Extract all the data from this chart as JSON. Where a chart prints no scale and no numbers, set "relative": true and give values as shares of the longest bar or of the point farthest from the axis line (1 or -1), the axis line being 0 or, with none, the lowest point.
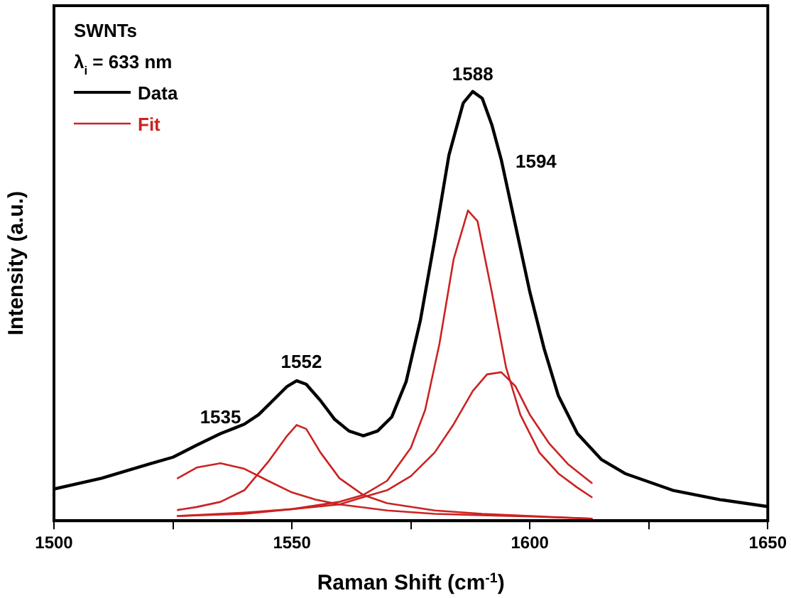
{
  "chart_data": {
    "type": "line",
    "xlabel": "Raman Shift (cm$^{-1}$)",
    "ylabel": "Intensity (a.u.)",
    "relative": true,
    "xlim": [
      1500,
      1650
    ],
    "xticks": [
      1500,
      {
        "value": 1525,
        "label": null
      },
      1550,
      {
        "value": 1575,
        "label": null
      },
      1600,
      {
        "value": 1625,
        "label": null
      },
      1650
    ],
    "grid": false,
    "legend": "top left",
    "marker": "none",
    "line_style": "solid",
    "annotations": [
      "SWNTs",
      "λ$_{i}$ = 633 nm",
      {
        "text": "1535",
        "x": 1535,
        "y": 0.2
      },
      {
        "text": "1552",
        "x": 1552,
        "y": 0.33
      },
      {
        "text": "1588",
        "x": 1588,
        "y": 1.0
      },
      {
        "text": "1594",
        "x": 1594,
        "y": 0.84
      }
    ],
    "series": [
      {
        "name": "Data",
        "color": "#000000",
        "x": [
          1500,
          1510,
          1520,
          1525,
          1530,
          1535,
          1538,
          1540,
          1543,
          1546,
          1549,
          1551,
          1553,
          1556,
          1559,
          1562,
          1565,
          1568,
          1571,
          1574,
          1577,
          1580,
          1583,
          1586,
          1588,
          1590,
          1592,
          1594,
          1597,
          1600,
          1603,
          1606,
          1610,
          1615,
          1620,
          1630,
          1640,
          1650
        ],
        "values": [
          0.074,
          0.099,
          0.132,
          0.148,
          0.176,
          0.203,
          0.216,
          0.225,
          0.247,
          0.28,
          0.313,
          0.326,
          0.318,
          0.28,
          0.236,
          0.209,
          0.198,
          0.209,
          0.242,
          0.324,
          0.467,
          0.654,
          0.852,
          0.973,
          1.0,
          0.984,
          0.923,
          0.841,
          0.687,
          0.533,
          0.401,
          0.291,
          0.203,
          0.143,
          0.11,
          0.071,
          0.049,
          0.033
        ]
      },
      {
        "name": "Fit",
        "color": "#cc2222",
        "x": [
          1526,
          1530,
          1535,
          1540,
          1545,
          1550,
          1555,
          1560,
          1570,
          1580,
          1590,
          1600,
          1613
        ],
        "values": [
          0.099,
          0.124,
          0.134,
          0.121,
          0.093,
          0.066,
          0.049,
          0.038,
          0.024,
          0.016,
          0.013,
          0.01,
          0.005
        ]
      },
      {
        "color": "#cc2222",
        "x": [
          1526,
          1530,
          1535,
          1540,
          1545,
          1549,
          1551,
          1553,
          1556,
          1560,
          1565,
          1570,
          1580,
          1590,
          1600,
          1613
        ],
        "values": [
          0.025,
          0.032,
          0.044,
          0.071,
          0.137,
          0.198,
          0.223,
          0.214,
          0.159,
          0.099,
          0.06,
          0.041,
          0.024,
          0.016,
          0.011,
          0.005
        ]
      },
      {
        "color": "#cc2222",
        "x": [
          1526,
          1540,
          1550,
          1560,
          1565,
          1570,
          1575,
          1578,
          1581,
          1584,
          1587,
          1589,
          1592,
          1595,
          1598,
          1602,
          1606,
          1610,
          1613
        ],
        "values": [
          0.011,
          0.019,
          0.027,
          0.044,
          0.06,
          0.093,
          0.17,
          0.258,
          0.412,
          0.61,
          0.723,
          0.698,
          0.533,
          0.357,
          0.247,
          0.159,
          0.11,
          0.077,
          0.055
        ]
      },
      {
        "color": "#cc2222",
        "x": [
          1526,
          1540,
          1550,
          1560,
          1565,
          1570,
          1575,
          1580,
          1584,
          1588,
          1591,
          1594,
          1597,
          1600,
          1604,
          1608,
          1613
        ],
        "values": [
          0.011,
          0.016,
          0.027,
          0.038,
          0.055,
          0.071,
          0.104,
          0.159,
          0.225,
          0.302,
          0.341,
          0.346,
          0.313,
          0.247,
          0.181,
          0.132,
          0.088
        ]
      }
    ]
  }
}
